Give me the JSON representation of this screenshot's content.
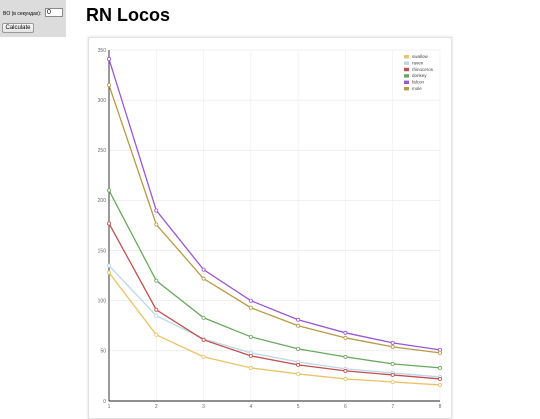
{
  "side": {
    "bo_label": "BO (в секундах):",
    "bo_value": "0",
    "calculate_label": "Calculate"
  },
  "page_title": "RN Locos",
  "chart_data": {
    "type": "line",
    "title": "",
    "xlabel": "",
    "ylabel": "",
    "x": [
      1,
      2,
      3,
      4,
      5,
      6,
      7,
      8
    ],
    "ylim": [
      0,
      350
    ],
    "yticks": [
      0,
      50,
      100,
      150,
      200,
      250,
      300,
      350
    ],
    "grid": true,
    "legend_position": "top-right",
    "series": [
      {
        "name": "swallow",
        "color": "#e8c36a",
        "values": [
          128,
          66,
          44,
          33,
          27,
          22,
          19,
          16
        ]
      },
      {
        "name": "raven",
        "color": "#bcd6ea",
        "values": [
          135,
          85,
          62,
          48,
          39,
          32,
          28,
          24
        ]
      },
      {
        "name": "rhinoceros",
        "color": "#c0504d",
        "values": [
          177,
          91,
          61,
          45,
          36,
          30,
          26,
          22
        ]
      },
      {
        "name": "donkey",
        "color": "#6aa860",
        "values": [
          210,
          120,
          83,
          64,
          52,
          44,
          37,
          33
        ]
      },
      {
        "name": "falcon",
        "color": "#9b57d3",
        "values": [
          341,
          190,
          131,
          100,
          81,
          68,
          58,
          51
        ]
      },
      {
        "name": "mole",
        "color": "#b79a47",
        "values": [
          315,
          176,
          122,
          93,
          75,
          63,
          54,
          48
        ]
      }
    ]
  }
}
